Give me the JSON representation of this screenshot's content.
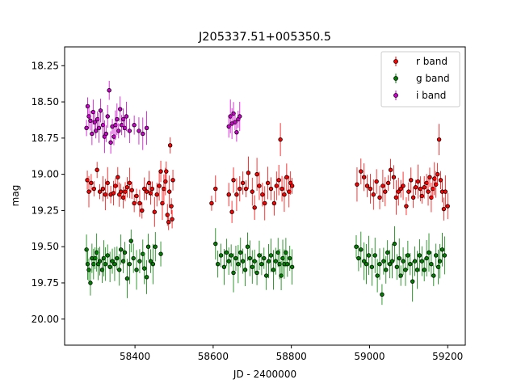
{
  "chart_data": {
    "type": "scatter",
    "title": "J205337.51+005350.5",
    "xlabel": "JD - 2400000",
    "ylabel": "mag",
    "xlim": [
      58220,
      59245
    ],
    "ylim": [
      20.18,
      18.12
    ],
    "y_inverted": true,
    "xticks": [
      58400,
      58600,
      58800,
      59000,
      59200
    ],
    "yticks": [
      18.25,
      18.5,
      18.75,
      19.0,
      19.25,
      19.5,
      19.75,
      20.0
    ],
    "grid": false,
    "legend_position": "top-right",
    "series": [
      {
        "name": "r band",
        "color": "#ff0000",
        "marker_edge": "#000000",
        "points": [
          [
            58278,
            19.04
          ],
          [
            58282,
            19.12
          ],
          [
            58288,
            19.06
          ],
          [
            58295,
            19.1
          ],
          [
            58303,
            18.97
          ],
          [
            58310,
            19.12
          ],
          [
            58318,
            19.1
          ],
          [
            58324,
            19.14
          ],
          [
            58330,
            19.06
          ],
          [
            58338,
            19.14
          ],
          [
            58345,
            19.13
          ],
          [
            58350,
            19.08
          ],
          [
            58356,
            19.02
          ],
          [
            58360,
            19.14
          ],
          [
            58364,
            19.12
          ],
          [
            58370,
            19.16
          ],
          [
            58375,
            19.12
          ],
          [
            58380,
            19.09
          ],
          [
            58386,
            19.06
          ],
          [
            58392,
            19.11
          ],
          [
            58398,
            19.2
          ],
          [
            58404,
            19.15
          ],
          [
            58412,
            19.2
          ],
          [
            58418,
            19.25
          ],
          [
            58424,
            19.1
          ],
          [
            58430,
            19.12
          ],
          [
            58436,
            19.06
          ],
          [
            58440,
            19.13
          ],
          [
            58444,
            19.1
          ],
          [
            58450,
            19.26
          ],
          [
            58456,
            19.14
          ],
          [
            58462,
            19.08
          ],
          [
            58466,
            18.98
          ],
          [
            58470,
            19.2
          ],
          [
            58474,
            19.1
          ],
          [
            58478,
            19.05
          ],
          [
            58480,
            18.98
          ],
          [
            58483,
            19.28
          ],
          [
            58486,
            19.33
          ],
          [
            58488,
            19.12
          ],
          [
            58490,
            18.8
          ],
          [
            58493,
            19.22
          ],
          [
            58495,
            19.31
          ],
          [
            58497,
            19.04
          ],
          [
            58596,
            19.2
          ],
          [
            58606,
            19.1
          ],
          [
            58640,
            19.14
          ],
          [
            58648,
            19.26
          ],
          [
            58652,
            19.04
          ],
          [
            58660,
            19.14
          ],
          [
            58668,
            19.1
          ],
          [
            58676,
            19.06
          ],
          [
            58684,
            19.1
          ],
          [
            58690,
            18.99
          ],
          [
            58700,
            19.12
          ],
          [
            58706,
            19.23
          ],
          [
            58712,
            19.0
          ],
          [
            58718,
            19.08
          ],
          [
            58726,
            19.14
          ],
          [
            58732,
            19.2
          ],
          [
            58740,
            19.06
          ],
          [
            58748,
            19.1
          ],
          [
            58756,
            19.2
          ],
          [
            58762,
            19.08
          ],
          [
            58768,
            19.04
          ],
          [
            58772,
            18.76
          ],
          [
            58776,
            19.1
          ],
          [
            58782,
            19.14
          ],
          [
            58788,
            19.02
          ],
          [
            58794,
            19.12
          ],
          [
            58798,
            19.06
          ],
          [
            58802,
            19.08
          ],
          [
            58968,
            19.07
          ],
          [
            58978,
            18.98
          ],
          [
            58986,
            19.02
          ],
          [
            58994,
            19.08
          ],
          [
            59002,
            19.1
          ],
          [
            59010,
            19.14
          ],
          [
            59018,
            19.05
          ],
          [
            59026,
            19.16
          ],
          [
            59034,
            19.08
          ],
          [
            59040,
            19.12
          ],
          [
            59048,
            19.06
          ],
          [
            59054,
            18.97
          ],
          [
            59062,
            19.02
          ],
          [
            59068,
            19.16
          ],
          [
            59074,
            19.12
          ],
          [
            59080,
            19.1
          ],
          [
            59086,
            19.08
          ],
          [
            59094,
            19.22
          ],
          [
            59100,
            19.12
          ],
          [
            59106,
            19.04
          ],
          [
            59112,
            19.16
          ],
          [
            59118,
            19.09
          ],
          [
            59124,
            19.05
          ],
          [
            59130,
            19.1
          ],
          [
            59134,
            19.15
          ],
          [
            59140,
            19.09
          ],
          [
            59146,
            19.06
          ],
          [
            59150,
            19.12
          ],
          [
            59154,
            19.02
          ],
          [
            59158,
            19.16
          ],
          [
            59162,
            19.1
          ],
          [
            59166,
            19.03
          ],
          [
            59170,
            19.07
          ],
          [
            59174,
            19.0
          ],
          [
            59178,
            18.76
          ],
          [
            59182,
            19.04
          ],
          [
            59186,
            19.12
          ],
          [
            59190,
            19.24
          ],
          [
            59194,
            19.12
          ],
          [
            59200,
            19.22
          ]
        ]
      },
      {
        "name": "g band",
        "color": "#008000",
        "marker_edge": "#000000",
        "points": [
          [
            58276,
            19.52
          ],
          [
            58279,
            19.62
          ],
          [
            58282,
            19.66
          ],
          [
            58286,
            19.75
          ],
          [
            58290,
            19.58
          ],
          [
            58294,
            19.62
          ],
          [
            58298,
            19.58
          ],
          [
            58302,
            19.54
          ],
          [
            58306,
            19.62
          ],
          [
            58310,
            19.6
          ],
          [
            58316,
            19.66
          ],
          [
            58320,
            19.58
          ],
          [
            58324,
            19.62
          ],
          [
            58330,
            19.56
          ],
          [
            58336,
            19.64
          ],
          [
            58342,
            19.6
          ],
          [
            58348,
            19.62
          ],
          [
            58354,
            19.58
          ],
          [
            58360,
            19.66
          ],
          [
            58364,
            19.52
          ],
          [
            58370,
            19.6
          ],
          [
            58374,
            19.54
          ],
          [
            58380,
            19.72
          ],
          [
            58386,
            19.62
          ],
          [
            58390,
            19.46
          ],
          [
            58396,
            19.58
          ],
          [
            58404,
            19.66
          ],
          [
            58412,
            19.6
          ],
          [
            58420,
            19.55
          ],
          [
            58424,
            19.65
          ],
          [
            58430,
            19.71
          ],
          [
            58434,
            19.5
          ],
          [
            58440,
            19.6
          ],
          [
            58446,
            19.62
          ],
          [
            58452,
            19.5
          ],
          [
            58466,
            19.55
          ],
          [
            58606,
            19.48
          ],
          [
            58612,
            19.62
          ],
          [
            58620,
            19.56
          ],
          [
            58628,
            19.64
          ],
          [
            58634,
            19.54
          ],
          [
            58640,
            19.6
          ],
          [
            58646,
            19.56
          ],
          [
            58652,
            19.68
          ],
          [
            58658,
            19.58
          ],
          [
            58664,
            19.62
          ],
          [
            58670,
            19.54
          ],
          [
            58676,
            19.6
          ],
          [
            58682,
            19.66
          ],
          [
            58688,
            19.5
          ],
          [
            58694,
            19.58
          ],
          [
            58700,
            19.64
          ],
          [
            58706,
            19.6
          ],
          [
            58712,
            19.68
          ],
          [
            58718,
            19.56
          ],
          [
            58724,
            19.62
          ],
          [
            58730,
            19.58
          ],
          [
            58736,
            19.7
          ],
          [
            58742,
            19.6
          ],
          [
            58748,
            19.56
          ],
          [
            58754,
            19.66
          ],
          [
            58760,
            19.6
          ],
          [
            58766,
            19.54
          ],
          [
            58770,
            19.62
          ],
          [
            58774,
            19.7
          ],
          [
            58778,
            19.58
          ],
          [
            58782,
            19.62
          ],
          [
            58786,
            19.54
          ],
          [
            58790,
            19.62
          ],
          [
            58796,
            19.58
          ],
          [
            58802,
            19.64
          ],
          [
            58966,
            19.5
          ],
          [
            58972,
            19.58
          ],
          [
            58978,
            19.52
          ],
          [
            58986,
            19.6
          ],
          [
            58992,
            19.62
          ],
          [
            58998,
            19.56
          ],
          [
            59006,
            19.64
          ],
          [
            59014,
            19.56
          ],
          [
            59020,
            19.7
          ],
          [
            59026,
            19.62
          ],
          [
            59032,
            19.83
          ],
          [
            59036,
            19.6
          ],
          [
            59042,
            19.66
          ],
          [
            59046,
            19.54
          ],
          [
            59052,
            19.62
          ],
          [
            59058,
            19.6
          ],
          [
            59064,
            19.48
          ],
          [
            59070,
            19.64
          ],
          [
            59076,
            19.58
          ],
          [
            59080,
            19.7
          ],
          [
            59086,
            19.6
          ],
          [
            59092,
            19.66
          ],
          [
            59098,
            19.56
          ],
          [
            59104,
            19.62
          ],
          [
            59110,
            19.74
          ],
          [
            59116,
            19.6
          ],
          [
            59122,
            19.66
          ],
          [
            59128,
            19.56
          ],
          [
            59134,
            19.6
          ],
          [
            59140,
            19.66
          ],
          [
            59146,
            19.58
          ],
          [
            59152,
            19.54
          ],
          [
            59158,
            19.62
          ],
          [
            59164,
            19.7
          ],
          [
            59170,
            19.56
          ],
          [
            59176,
            19.64
          ],
          [
            59180,
            19.6
          ],
          [
            59186,
            19.52
          ],
          [
            59192,
            19.56
          ]
        ]
      },
      {
        "name": "i band",
        "color": "#cc00cc",
        "marker_edge": "#000000",
        "points": [
          [
            58276,
            18.68
          ],
          [
            58279,
            18.53
          ],
          [
            58282,
            18.6
          ],
          [
            58286,
            18.63
          ],
          [
            58290,
            18.72
          ],
          [
            58293,
            18.57
          ],
          [
            58297,
            18.64
          ],
          [
            58300,
            18.7
          ],
          [
            58304,
            18.62
          ],
          [
            58308,
            18.68
          ],
          [
            58312,
            18.56
          ],
          [
            58318,
            18.66
          ],
          [
            58322,
            18.74
          ],
          [
            58326,
            18.72
          ],
          [
            58330,
            18.6
          ],
          [
            58334,
            18.42
          ],
          [
            58338,
            18.78
          ],
          [
            58342,
            18.67
          ],
          [
            58346,
            18.74
          ],
          [
            58350,
            18.66
          ],
          [
            58354,
            18.62
          ],
          [
            58358,
            18.7
          ],
          [
            58362,
            18.55
          ],
          [
            58366,
            18.66
          ],
          [
            58370,
            18.62
          ],
          [
            58374,
            18.68
          ],
          [
            58378,
            18.6
          ],
          [
            58386,
            18.7
          ],
          [
            58398,
            18.66
          ],
          [
            58410,
            18.7
          ],
          [
            58420,
            18.72
          ],
          [
            58430,
            18.68
          ],
          [
            58640,
            18.67
          ],
          [
            58644,
            18.6
          ],
          [
            58648,
            18.65
          ],
          [
            58652,
            18.58
          ],
          [
            58656,
            18.64
          ],
          [
            58660,
            18.71
          ],
          [
            58664,
            18.62
          ],
          [
            58668,
            18.6
          ]
        ]
      }
    ]
  }
}
